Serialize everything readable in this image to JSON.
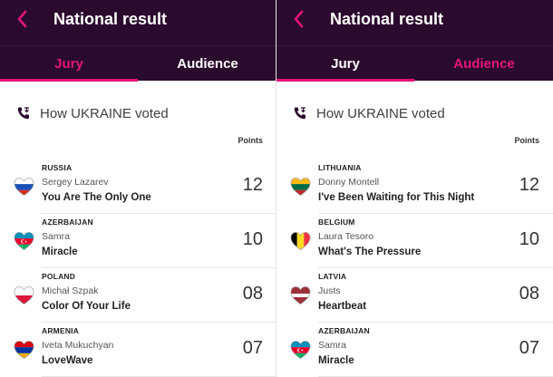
{
  "left": {
    "header": {
      "title": "National result"
    },
    "tabs": [
      {
        "label": "Jury",
        "active": false
      },
      {
        "label": "Audience",
        "active": true
      }
    ],
    "vote_heading": "How UKRAINE voted",
    "points_label": "Points",
    "entries": [
      {
        "country": "RUSSIA",
        "artist": "Sergey Lazarev",
        "song": "You Are The Only One",
        "points": "12"
      },
      {
        "country": "AZERBAIJAN",
        "artist": "Samra",
        "song": "Miracle",
        "points": "10"
      },
      {
        "country": "POLAND",
        "artist": "Michał Szpak",
        "song": "Color Of Your Life",
        "points": "08"
      },
      {
        "country": "ARMENIA",
        "artist": "Iveta Mukuchyan",
        "song": "LoveWave",
        "points": "07"
      }
    ]
  },
  "right": {
    "header": {
      "title": "National result"
    },
    "tabs": [
      {
        "label": "Jury",
        "active": true
      },
      {
        "label": "Audience",
        "active": false
      }
    ],
    "vote_heading": "How UKRAINE voted",
    "points_label": "Points",
    "entries": [
      {
        "country": "LITHUANIA",
        "artist": "Donny Montell",
        "song": "I've Been Waiting for This Night",
        "points": "12"
      },
      {
        "country": "BELGIUM",
        "artist": "Laura Tesoro",
        "song": "What's The Pressure",
        "points": "10"
      },
      {
        "country": "LATVIA",
        "artist": "Justs",
        "song": "Heartbeat",
        "points": "08"
      },
      {
        "country": "AZERBAIJAN",
        "artist": "Samra",
        "song": "Miracle",
        "points": "07"
      }
    ]
  },
  "colors": {
    "header_bg": "#2a0b2d",
    "accent": "#e5137a"
  },
  "icons": {
    "back": "chevron-left-icon",
    "phone": "phone-icon",
    "flag": "heart-flag-icon"
  }
}
